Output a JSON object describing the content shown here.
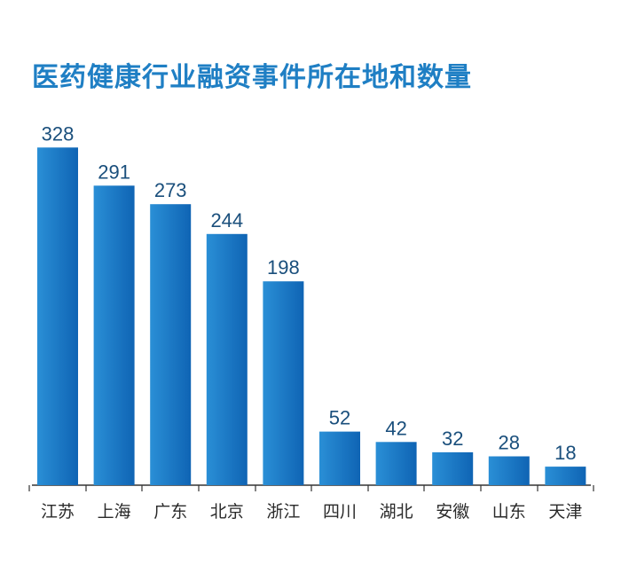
{
  "chart_data": {
    "type": "bar",
    "title": "医药健康行业融资事件所在地和数量",
    "categories": [
      "江苏",
      "上海",
      "广东",
      "北京",
      "浙江",
      "四川",
      "湖北",
      "安徽",
      "山东",
      "天津"
    ],
    "values": [
      328,
      291,
      273,
      244,
      198,
      52,
      42,
      32,
      28,
      18
    ],
    "xlabel": "",
    "ylabel": "",
    "ylim": [
      0,
      330
    ],
    "grid": false,
    "legend": "none",
    "data_labels": true,
    "colors": {
      "bar_top": "#2a8fd6",
      "bar_bottom": "#0f64b4",
      "title": "#1f7fc4",
      "value_label": "#1a4f7c",
      "axis": "#333333"
    }
  }
}
